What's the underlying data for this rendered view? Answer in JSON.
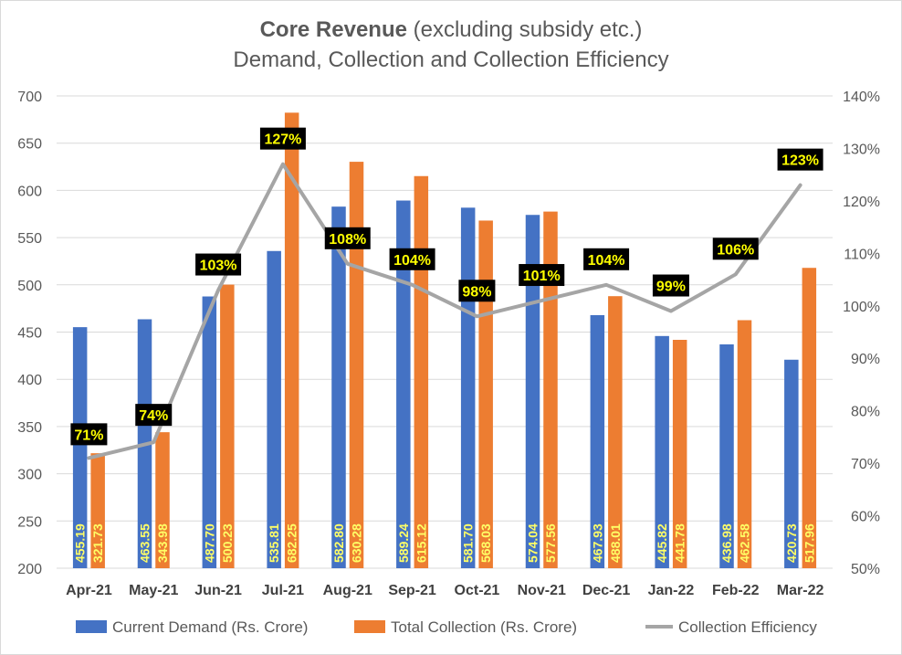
{
  "chart_data": {
    "type": "bar",
    "title_bold": "Core Revenue",
    "title_rest": " (excluding subsidy etc.)",
    "subtitle": "Demand, Collection and Collection Efficiency",
    "categories": [
      "Apr-21",
      "May-21",
      "Jun-21",
      "Jul-21",
      "Aug-21",
      "Sep-21",
      "Oct-21",
      "Nov-21",
      "Dec-21",
      "Jan-22",
      "Feb-22",
      "Mar-22"
    ],
    "series": [
      {
        "name": "Current Demand (Rs. Crore)",
        "type": "bar",
        "color": "#4472c4",
        "axis": "left",
        "values": [
          455.19,
          463.55,
          487.7,
          535.81,
          582.8,
          589.24,
          581.7,
          574.04,
          467.93,
          445.82,
          436.98,
          420.73
        ],
        "labels": [
          "455.19",
          "463.55",
          "487.70",
          "535.81",
          "582.80",
          "589.24",
          "581.70",
          "574.04",
          "467.93",
          "445.82",
          "436.98",
          "420.73"
        ]
      },
      {
        "name": "Total Collection (Rs. Crore)",
        "type": "bar",
        "color": "#ed7d31",
        "axis": "left",
        "values": [
          321.73,
          343.98,
          500.23,
          682.25,
          630.28,
          615.12,
          568.03,
          577.56,
          488.01,
          441.78,
          462.58,
          517.96
        ],
        "labels": [
          "321.73",
          "343.98",
          "500.23",
          "682.25",
          "630.28",
          "615.12",
          "568.03",
          "577.56",
          "488.01",
          "441.78",
          "462.58",
          "517.96"
        ]
      },
      {
        "name": "Collection Efficiency",
        "type": "line",
        "color": "#a5a5a5",
        "axis": "right",
        "values": [
          71,
          74,
          103,
          127,
          108,
          104,
          98,
          101,
          104,
          99,
          106,
          123
        ],
        "labels": [
          "71%",
          "74%",
          "103%",
          "127%",
          "108%",
          "104%",
          "98%",
          "101%",
          "104%",
          "99%",
          "106%",
          "123%"
        ]
      }
    ],
    "y_left": {
      "min": 200,
      "max": 700,
      "step": 50,
      "ticks": [
        "200",
        "250",
        "300",
        "350",
        "400",
        "450",
        "500",
        "550",
        "600",
        "650",
        "700"
      ]
    },
    "y_right": {
      "min": 50,
      "max": 140,
      "step": 10,
      "ticks": [
        "50%",
        "60%",
        "70%",
        "80%",
        "90%",
        "100%",
        "110%",
        "120%",
        "130%",
        "140%"
      ]
    },
    "grid": true,
    "legend_position": "bottom"
  }
}
